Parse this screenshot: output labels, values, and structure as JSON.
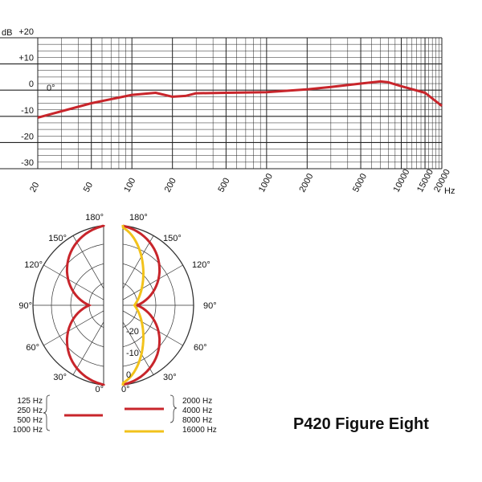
{
  "colors": {
    "red": "#c8252b",
    "yellow": "#f2c21b",
    "grid": "#222222"
  },
  "chart_data": [
    {
      "type": "line",
      "ylabel": "dB",
      "xunit": "Hz",
      "x_ticks": [
        20,
        50,
        100,
        200,
        500,
        1000,
        2000,
        5000,
        10000,
        15000,
        20000
      ],
      "y_ticks": [
        {
          "value": 20,
          "label": "+20"
        },
        {
          "value": 10,
          "label": "+10"
        },
        {
          "value": 0,
          "label": "0"
        },
        {
          "value": -10,
          "label": "-10"
        },
        {
          "value": -20,
          "label": "-20"
        },
        {
          "value": -30,
          "label": "-30"
        }
      ],
      "ylim": [
        -30,
        20
      ],
      "xlim": [
        20,
        20000
      ],
      "xscale": "log",
      "annotation": "0°",
      "series": [
        {
          "color": "#c8252b",
          "x": [
            20,
            50,
            100,
            150,
            200,
            250,
            300,
            500,
            1000,
            2000,
            3000,
            5000,
            7000,
            8000,
            10000,
            15000,
            20000
          ],
          "y": [
            -10.5,
            -5,
            -1.8,
            -1,
            -2.5,
            -2.2,
            -1.2,
            -1,
            -0.8,
            0.3,
            1.2,
            2.5,
            3.3,
            3,
            1.5,
            -1,
            -6
          ]
        }
      ]
    },
    {
      "type": "polar",
      "angle_labels_left": [
        "180°",
        "150°",
        "120°",
        "90°",
        "60°",
        "30°",
        "0°"
      ],
      "angle_labels_right": [
        "180°",
        "150°",
        "120°",
        "90°",
        "60°",
        "30°",
        "0°"
      ],
      "radial_labels": [
        "-20",
        "-10",
        "0"
      ],
      "series": [
        {
          "side": "left",
          "color": "#c8252b",
          "legend": [
            "125 Hz",
            "250 Hz",
            "500 Hz",
            "1000 Hz"
          ]
        },
        {
          "side": "right",
          "color": "#c8252b",
          "legend": [
            "2000 Hz",
            "4000 Hz",
            "8000 Hz"
          ]
        },
        {
          "side": "right",
          "color": "#f2c21b",
          "legend": [
            "16000 Hz"
          ]
        }
      ]
    }
  ],
  "product_title": "P420 Figure Eight"
}
